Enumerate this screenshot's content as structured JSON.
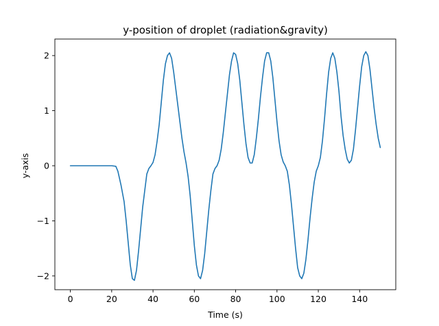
{
  "chart_data": {
    "type": "line",
    "title": "y-position of droplet (radiation&gravity)",
    "xlabel": "Time (s)",
    "ylabel": "y-axis",
    "xlim": [
      -7.5,
      157.5
    ],
    "ylim": [
      -2.25,
      2.3
    ],
    "xticks": [
      0,
      20,
      40,
      60,
      80,
      100,
      120,
      140
    ],
    "yticks": [
      -2,
      -1,
      0,
      1,
      2
    ],
    "ytick_labels": [
      "−2",
      "−1",
      "0",
      "1",
      "2"
    ],
    "grid": false,
    "line_color": "#1f77b4",
    "series": [
      {
        "points": [
          [
            0,
            0
          ],
          [
            10,
            0
          ],
          [
            20,
            0
          ],
          [
            22,
            -0.01
          ],
          [
            23,
            -0.1
          ],
          [
            24.5,
            -0.35
          ],
          [
            26,
            -0.65
          ],
          [
            27,
            -1.0
          ],
          [
            28,
            -1.4
          ],
          [
            29,
            -1.8
          ],
          [
            30,
            -2.05
          ],
          [
            31,
            -2.08
          ],
          [
            32,
            -1.9
          ],
          [
            33,
            -1.55
          ],
          [
            34,
            -1.15
          ],
          [
            35,
            -0.75
          ],
          [
            36,
            -0.45
          ],
          [
            37,
            -0.15
          ],
          [
            38,
            -0.05
          ],
          [
            39,
            0.0
          ],
          [
            40,
            0.06
          ],
          [
            41,
            0.2
          ],
          [
            42,
            0.45
          ],
          [
            43,
            0.75
          ],
          [
            44,
            1.15
          ],
          [
            45,
            1.55
          ],
          [
            46,
            1.85
          ],
          [
            47,
            2.0
          ],
          [
            48,
            2.05
          ],
          [
            49,
            1.95
          ],
          [
            50,
            1.7
          ],
          [
            51,
            1.4
          ],
          [
            52,
            1.1
          ],
          [
            53,
            0.8
          ],
          [
            54,
            0.5
          ],
          [
            55,
            0.25
          ],
          [
            56,
            0.05
          ],
          [
            57,
            -0.2
          ],
          [
            58,
            -0.55
          ],
          [
            59,
            -1.0
          ],
          [
            60,
            -1.45
          ],
          [
            61,
            -1.8
          ],
          [
            62,
            -2.0
          ],
          [
            63,
            -2.05
          ],
          [
            64,
            -1.9
          ],
          [
            65,
            -1.6
          ],
          [
            66,
            -1.2
          ],
          [
            67,
            -0.8
          ],
          [
            68,
            -0.45
          ],
          [
            69,
            -0.15
          ],
          [
            70,
            -0.05
          ],
          [
            71,
            0.0
          ],
          [
            72,
            0.1
          ],
          [
            73,
            0.3
          ],
          [
            74,
            0.6
          ],
          [
            75,
            0.95
          ],
          [
            76,
            1.3
          ],
          [
            77,
            1.65
          ],
          [
            78,
            1.9
          ],
          [
            79,
            2.05
          ],
          [
            80,
            2.02
          ],
          [
            81,
            1.85
          ],
          [
            82,
            1.55
          ],
          [
            83,
            1.15
          ],
          [
            84,
            0.75
          ],
          [
            85,
            0.4
          ],
          [
            86,
            0.15
          ],
          [
            87,
            0.05
          ],
          [
            88,
            0.05
          ],
          [
            89,
            0.2
          ],
          [
            90,
            0.5
          ],
          [
            91,
            0.85
          ],
          [
            92,
            1.25
          ],
          [
            93,
            1.6
          ],
          [
            94,
            1.9
          ],
          [
            95,
            2.05
          ],
          [
            96,
            2.05
          ],
          [
            97,
            1.9
          ],
          [
            98,
            1.6
          ],
          [
            99,
            1.2
          ],
          [
            100,
            0.8
          ],
          [
            101,
            0.45
          ],
          [
            102,
            0.2
          ],
          [
            103,
            0.07
          ],
          [
            104,
            0.0
          ],
          [
            105,
            -0.1
          ],
          [
            106,
            -0.35
          ],
          [
            107,
            -0.7
          ],
          [
            108,
            -1.1
          ],
          [
            109,
            -1.5
          ],
          [
            110,
            -1.85
          ],
          [
            111,
            -2.0
          ],
          [
            112,
            -2.05
          ],
          [
            113,
            -1.95
          ],
          [
            114,
            -1.7
          ],
          [
            115,
            -1.35
          ],
          [
            116,
            -0.95
          ],
          [
            117,
            -0.6
          ],
          [
            118,
            -0.3
          ],
          [
            119,
            -0.1
          ],
          [
            120,
            0.0
          ],
          [
            121,
            0.15
          ],
          [
            122,
            0.45
          ],
          [
            123,
            0.85
          ],
          [
            124,
            1.3
          ],
          [
            125,
            1.7
          ],
          [
            126,
            1.95
          ],
          [
            127,
            2.05
          ],
          [
            128,
            1.95
          ],
          [
            129,
            1.7
          ],
          [
            130,
            1.35
          ],
          [
            131,
            0.9
          ],
          [
            132,
            0.55
          ],
          [
            133,
            0.3
          ],
          [
            134,
            0.12
          ],
          [
            135,
            0.05
          ],
          [
            136,
            0.1
          ],
          [
            137,
            0.3
          ],
          [
            138,
            0.65
          ],
          [
            139,
            1.05
          ],
          [
            140,
            1.45
          ],
          [
            141,
            1.8
          ],
          [
            142,
            2.0
          ],
          [
            143,
            2.07
          ],
          [
            144,
            2.0
          ],
          [
            145,
            1.75
          ],
          [
            146,
            1.4
          ],
          [
            147,
            1.05
          ],
          [
            148,
            0.75
          ],
          [
            149,
            0.5
          ],
          [
            150,
            0.33
          ]
        ]
      }
    ]
  }
}
